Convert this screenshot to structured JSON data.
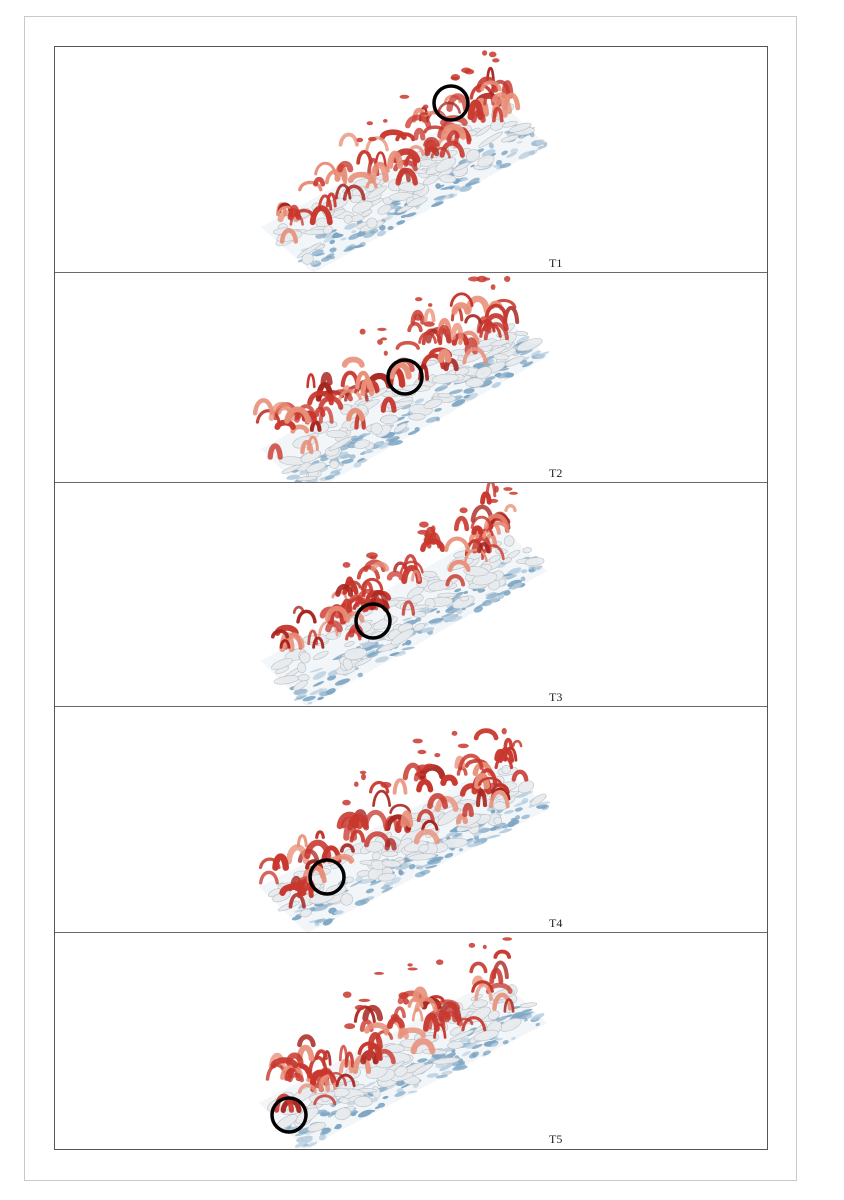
{
  "figure": {
    "panels": [
      {
        "label": "T1",
        "highlight": "vortex-highlight-circle"
      },
      {
        "label": "T2",
        "highlight": "vortex-highlight-circle"
      },
      {
        "label": "T3",
        "highlight": "vortex-highlight-circle"
      },
      {
        "label": "T4",
        "highlight": "vortex-highlight-circle"
      },
      {
        "label": "T5",
        "highlight": "vortex-highlight-circle"
      }
    ],
    "colors": {
      "vortex_red": "#c8372d",
      "vortex_salmon": "#e8907a",
      "vortex_white": "#e9ecef",
      "vortex_blue": "#7ea6c4",
      "circle": "#000000"
    }
  }
}
